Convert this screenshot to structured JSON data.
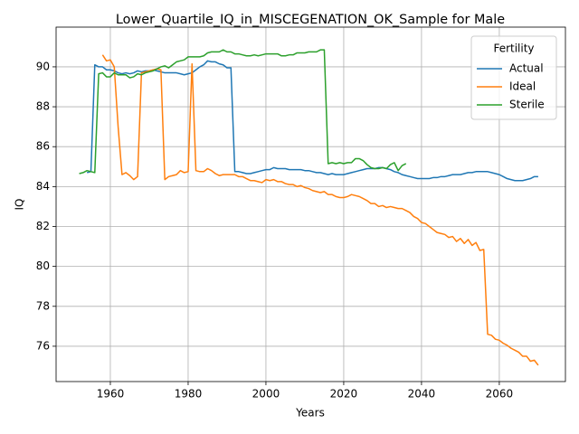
{
  "chart_data": {
    "type": "line",
    "title": "Lower_Quartile_IQ_in_MISCEGENATION_OK_Sample for Male",
    "x_label": "Years",
    "y_label": "IQ",
    "legend_title": "Fertility",
    "legend_loc": "upper right",
    "grid": true,
    "xlim": [
      1946.05,
      2077
    ],
    "xticks": [
      1960,
      1980,
      2000,
      2020,
      2040,
      2060
    ],
    "ylim": [
      74.23,
      91.99
    ],
    "yticks": [
      76,
      78,
      80,
      82,
      84,
      86,
      88,
      90
    ],
    "x": [
      1952,
      1953,
      1954,
      1955,
      1956,
      1957,
      1958,
      1959,
      1960,
      1961,
      1962,
      1963,
      1964,
      1965,
      1966,
      1967,
      1968,
      1969,
      1970,
      1971,
      1972,
      1973,
      1974,
      1975,
      1976,
      1977,
      1978,
      1979,
      1980,
      1981,
      1982,
      1983,
      1984,
      1985,
      1986,
      1987,
      1988,
      1989,
      1990,
      1991,
      1992,
      1993,
      1994,
      1995,
      1996,
      1997,
      1998,
      1999,
      2000,
      2001,
      2002,
      2003,
      2004,
      2005,
      2006,
      2007,
      2008,
      2009,
      2010,
      2011,
      2012,
      2013,
      2014,
      2015,
      2016,
      2017,
      2018,
      2019,
      2020,
      2021,
      2022,
      2023,
      2024,
      2025,
      2026,
      2027,
      2028,
      2029,
      2030,
      2031,
      2032,
      2033,
      2034,
      2035,
      2036,
      2037,
      2038,
      2039,
      2040,
      2041,
      2042,
      2043,
      2044,
      2045,
      2046,
      2047,
      2048,
      2049,
      2050,
      2051,
      2052,
      2053,
      2054,
      2055,
      2056,
      2057,
      2058,
      2059,
      2060,
      2061,
      2062,
      2063,
      2064,
      2065,
      2066,
      2067,
      2068,
      2069,
      2070
    ],
    "series": [
      {
        "name": "Actual",
        "color": "#1f77b4",
        "values": [
          null,
          null,
          84.7,
          84.75,
          90.1,
          90.0,
          90.0,
          89.85,
          89.85,
          89.8,
          89.7,
          89.65,
          89.7,
          89.65,
          89.7,
          89.8,
          89.75,
          89.8,
          89.8,
          89.85,
          89.8,
          89.75,
          89.7,
          89.7,
          89.7,
          89.7,
          89.65,
          89.6,
          89.65,
          89.7,
          89.85,
          90.0,
          90.1,
          90.3,
          90.25,
          90.25,
          90.15,
          90.1,
          89.95,
          89.95,
          84.75,
          84.75,
          84.7,
          84.65,
          84.65,
          84.7,
          84.75,
          84.8,
          84.85,
          84.85,
          84.95,
          84.9,
          84.9,
          84.9,
          84.85,
          84.85,
          84.85,
          84.85,
          84.8,
          84.8,
          84.75,
          84.7,
          84.7,
          84.65,
          84.6,
          84.65,
          84.6,
          84.6,
          84.6,
          84.65,
          84.7,
          84.75,
          84.8,
          84.85,
          84.9,
          84.9,
          84.9,
          84.95,
          84.95,
          84.9,
          84.85,
          84.75,
          84.7,
          84.6,
          84.55,
          84.5,
          84.45,
          84.4,
          84.4,
          84.4,
          84.4,
          84.45,
          84.45,
          84.5,
          84.5,
          84.55,
          84.6,
          84.6,
          84.6,
          84.65,
          84.7,
          84.7,
          84.75,
          84.75,
          84.75,
          84.75,
          84.7,
          84.65,
          84.6,
          84.5,
          84.4,
          84.35,
          84.3,
          84.3,
          84.3,
          84.35,
          84.4,
          84.5,
          84.5
        ]
      },
      {
        "name": "Ideal",
        "color": "#ff7f0e",
        "values": [
          null,
          null,
          null,
          null,
          null,
          null,
          90.6,
          90.3,
          90.35,
          90.0,
          87.0,
          84.6,
          84.7,
          84.55,
          84.35,
          84.5,
          89.7,
          89.75,
          89.8,
          89.85,
          89.9,
          89.85,
          84.35,
          84.5,
          84.55,
          84.6,
          84.8,
          84.7,
          84.75,
          90.15,
          84.8,
          84.75,
          84.75,
          84.9,
          84.8,
          84.65,
          84.55,
          84.6,
          84.6,
          84.6,
          84.6,
          84.5,
          84.5,
          84.4,
          84.3,
          84.3,
          84.25,
          84.2,
          84.35,
          84.3,
          84.35,
          84.25,
          84.25,
          84.15,
          84.1,
          84.1,
          84.0,
          84.05,
          83.95,
          83.9,
          83.8,
          83.75,
          83.7,
          83.75,
          83.6,
          83.6,
          83.5,
          83.45,
          83.45,
          83.5,
          83.6,
          83.55,
          83.5,
          83.4,
          83.3,
          83.15,
          83.15,
          83.0,
          83.05,
          82.95,
          83.0,
          82.95,
          82.9,
          82.9,
          82.8,
          82.7,
          82.5,
          82.4,
          82.2,
          82.15,
          82.0,
          81.85,
          81.7,
          81.65,
          81.6,
          81.45,
          81.5,
          81.25,
          81.4,
          81.15,
          81.35,
          81.05,
          81.2,
          80.8,
          80.85,
          76.6,
          76.55,
          76.35,
          76.3,
          76.15,
          76.05,
          75.9,
          75.8,
          75.7,
          75.5,
          75.5,
          75.25,
          75.3,
          75.05
        ]
      },
      {
        "name": "Sterile",
        "color": "#2ca02c",
        "values": [
          84.65,
          84.7,
          84.8,
          84.75,
          84.7,
          89.65,
          89.7,
          89.5,
          89.5,
          89.7,
          89.6,
          89.6,
          89.6,
          89.45,
          89.5,
          89.65,
          89.6,
          89.7,
          89.75,
          89.8,
          89.9,
          90.0,
          90.05,
          89.95,
          90.1,
          90.25,
          90.3,
          90.35,
          90.5,
          90.5,
          90.5,
          90.5,
          90.55,
          90.7,
          90.75,
          90.75,
          90.75,
          90.85,
          90.75,
          90.75,
          90.65,
          90.65,
          90.6,
          90.55,
          90.55,
          90.6,
          90.55,
          90.6,
          90.65,
          90.65,
          90.65,
          90.65,
          90.55,
          90.55,
          90.6,
          90.6,
          90.7,
          90.7,
          90.7,
          90.75,
          90.75,
          90.75,
          90.85,
          90.85,
          85.15,
          85.2,
          85.15,
          85.2,
          85.15,
          85.2,
          85.2,
          85.4,
          85.4,
          85.3,
          85.1,
          84.95,
          84.9,
          84.9,
          84.95,
          84.9,
          85.1,
          85.2,
          84.8,
          85.05,
          85.15,
          null,
          null,
          null,
          null,
          null,
          null,
          null,
          null,
          null,
          null,
          null,
          null,
          null,
          null,
          null,
          null,
          null,
          null,
          null,
          null,
          null,
          null,
          null,
          null,
          null,
          null,
          null,
          null,
          null,
          null,
          null,
          null,
          null,
          null
        ]
      }
    ]
  }
}
